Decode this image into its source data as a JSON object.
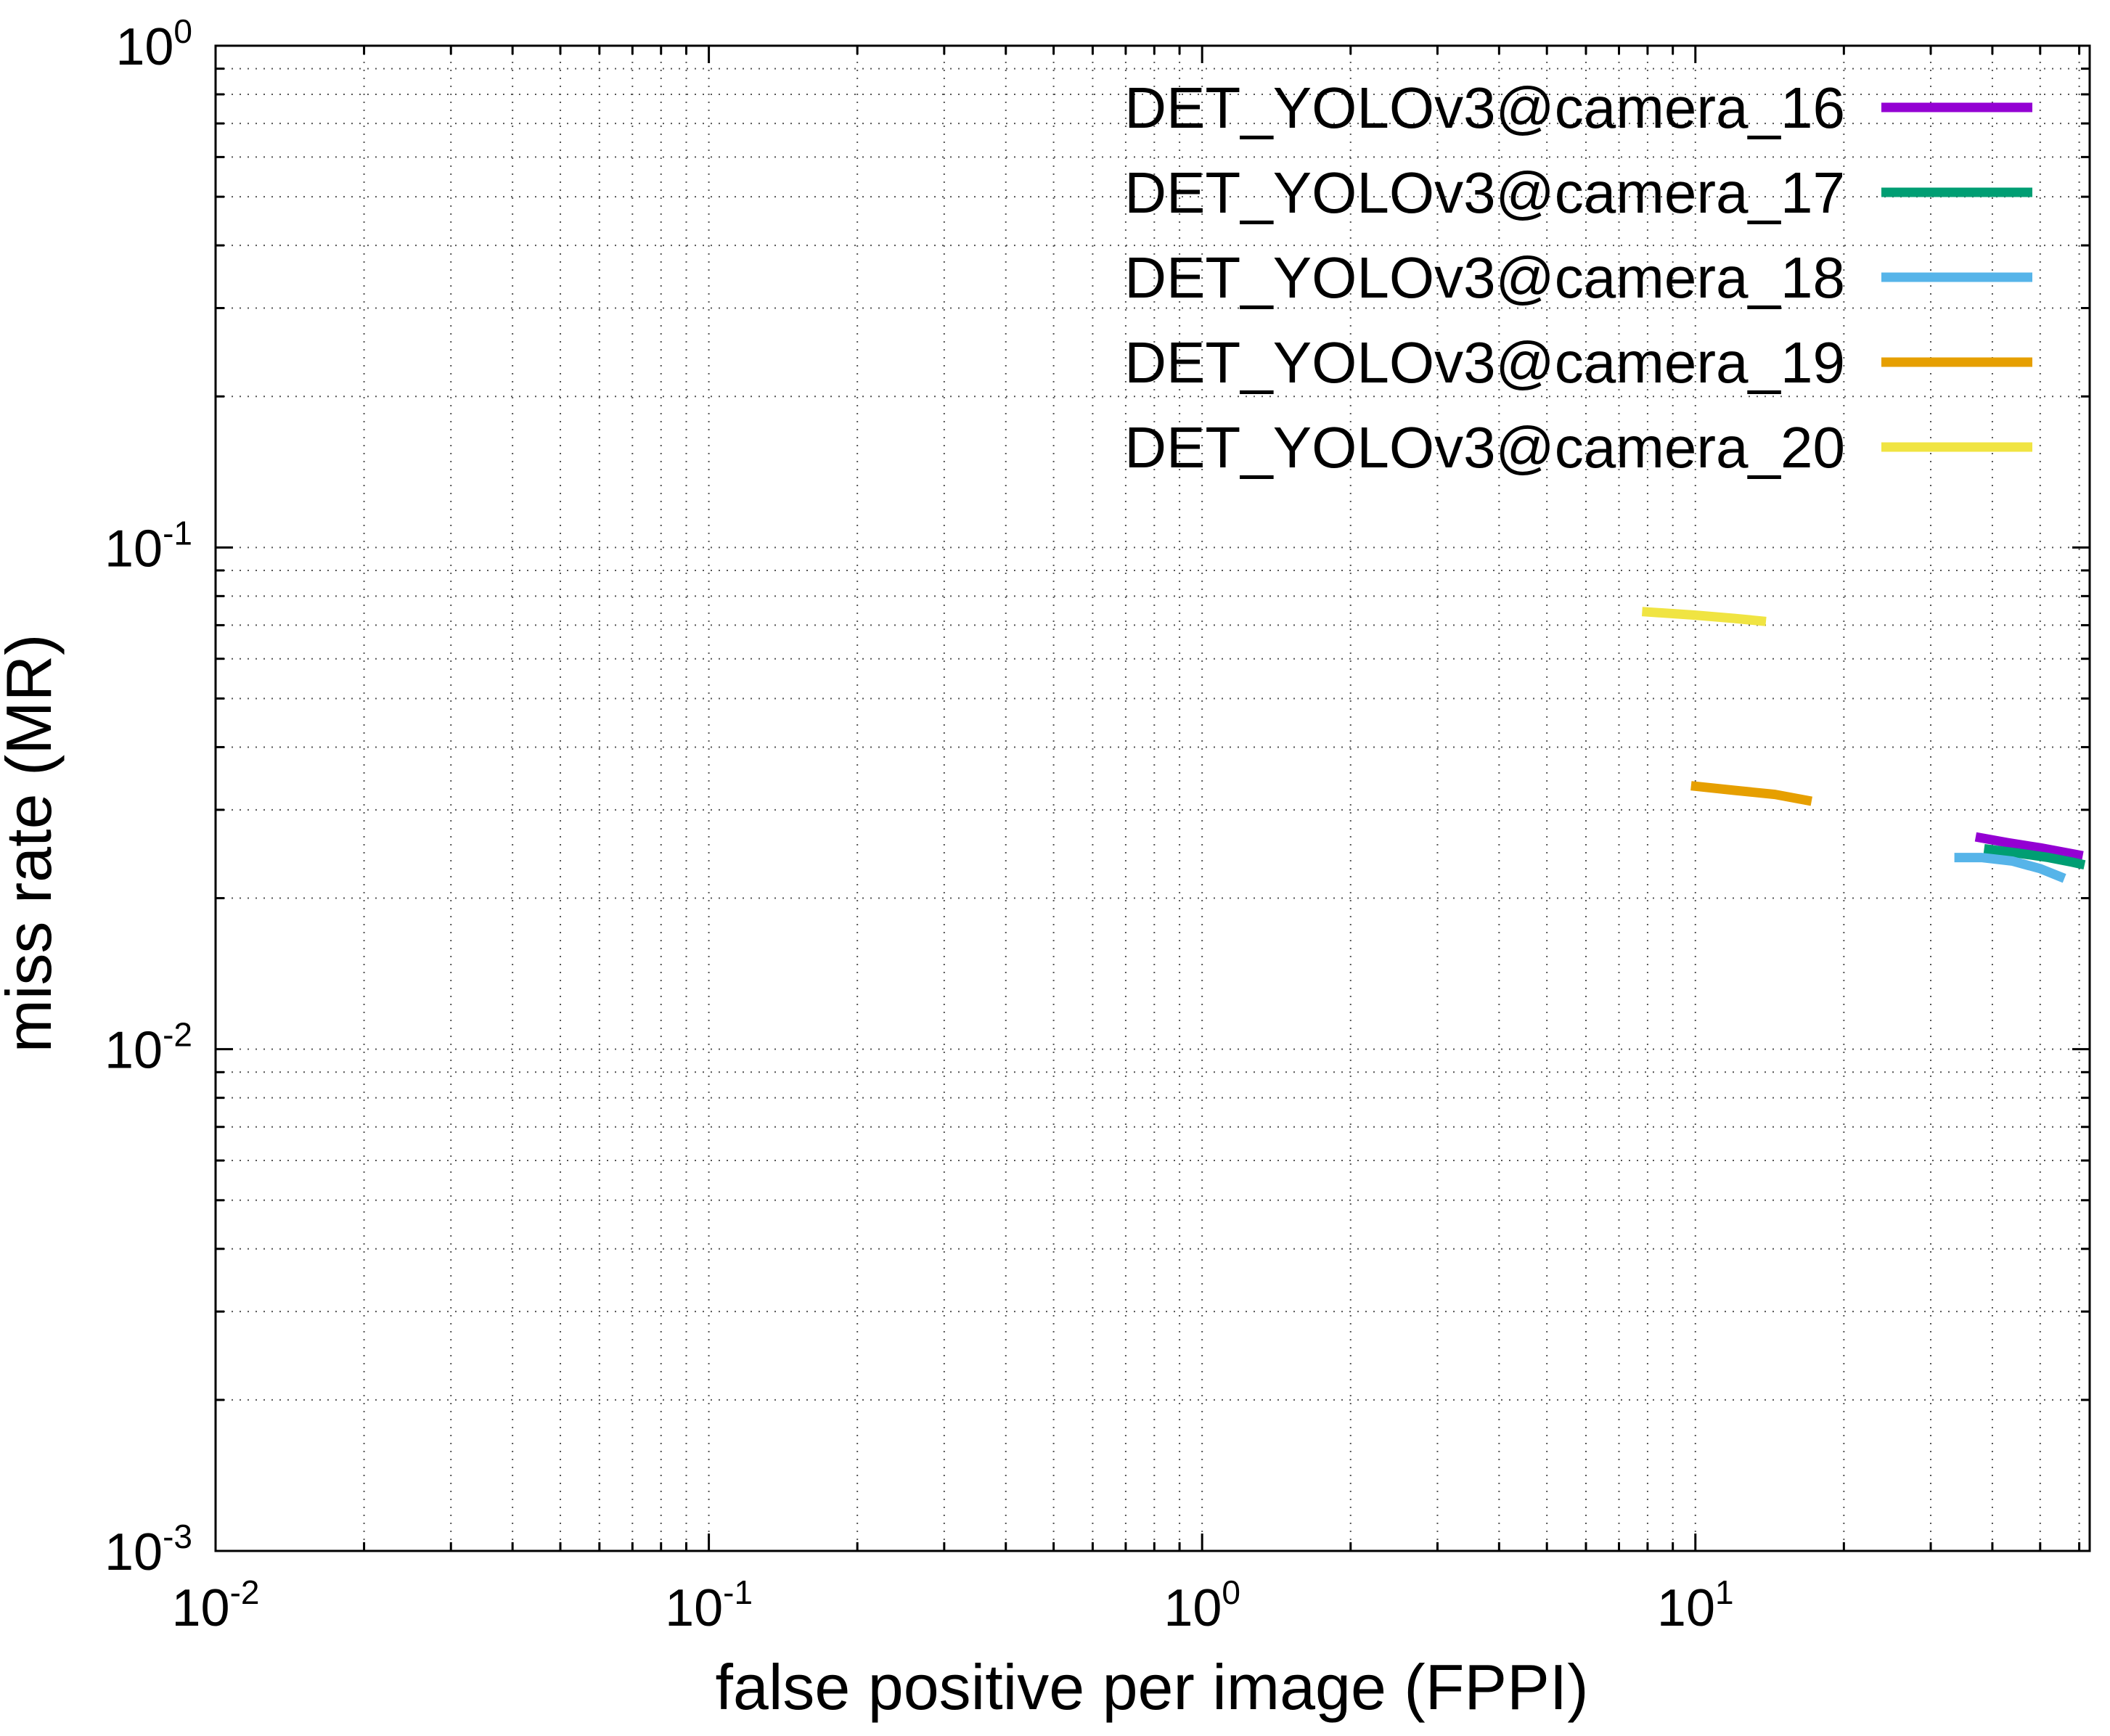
{
  "chart_data": {
    "type": "line",
    "xlabel": "false positive per image (FPPI)",
    "ylabel": "miss rate (MR)",
    "xscale": "log",
    "yscale": "log",
    "xlim": [
      0.01,
      63
    ],
    "ylim": [
      0.001,
      1
    ],
    "grid": true,
    "legend_position": "top-right",
    "x_ticks": [
      {
        "value": 0.01,
        "base": "10",
        "exp": "-2"
      },
      {
        "value": 0.1,
        "base": "10",
        "exp": "-1"
      },
      {
        "value": 1,
        "base": "10",
        "exp": "0"
      },
      {
        "value": 10,
        "base": "10",
        "exp": "1"
      }
    ],
    "y_ticks": [
      {
        "value": 0.001,
        "base": "10",
        "exp": "-3"
      },
      {
        "value": 0.01,
        "base": "10",
        "exp": "-2"
      },
      {
        "value": 0.1,
        "base": "10",
        "exp": "-1"
      },
      {
        "value": 1,
        "base": "10",
        "exp": "0"
      }
    ],
    "series": [
      {
        "name": "DET_YOLOv3@camera_16",
        "color": "#9400d3",
        "points": [
          [
            37,
            0.0265
          ],
          [
            43,
            0.0258
          ],
          [
            50,
            0.0252
          ],
          [
            57,
            0.0246
          ],
          [
            61,
            0.0243
          ]
        ]
      },
      {
        "name": "DET_YOLOv3@camera_17",
        "color": "#009e73",
        "points": [
          [
            38.5,
            0.0251
          ],
          [
            45,
            0.0246
          ],
          [
            52,
            0.0241
          ],
          [
            58,
            0.0236
          ],
          [
            61.5,
            0.0233
          ]
        ]
      },
      {
        "name": "DET_YOLOv3@camera_18",
        "color": "#56b4e9",
        "points": [
          [
            33.5,
            0.0241
          ],
          [
            38,
            0.0241
          ],
          [
            44,
            0.0237
          ],
          [
            50,
            0.0229
          ],
          [
            56,
            0.0219
          ]
        ]
      },
      {
        "name": "DET_YOLOv3@camera_19",
        "color": "#e69f00",
        "points": [
          [
            9.8,
            0.0335
          ],
          [
            12,
            0.0328
          ],
          [
            14.5,
            0.0322
          ],
          [
            17.2,
            0.0312
          ]
        ]
      },
      {
        "name": "DET_YOLOv3@camera_20",
        "color": "#f0e442",
        "points": [
          [
            7.8,
            0.0745
          ],
          [
            10,
            0.0733
          ],
          [
            12,
            0.0722
          ],
          [
            13.9,
            0.0712
          ]
        ]
      }
    ]
  }
}
